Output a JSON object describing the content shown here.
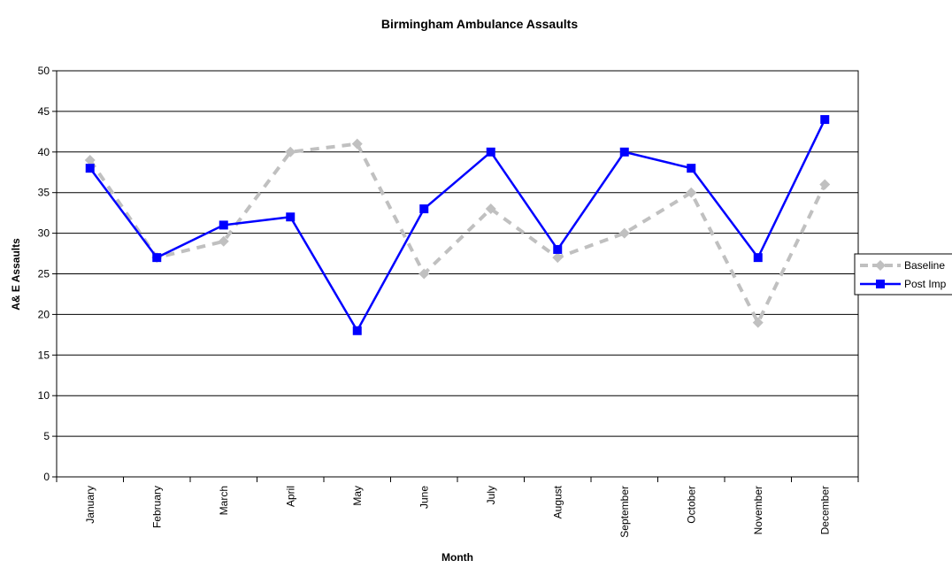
{
  "chart_data": {
    "type": "line",
    "title": "Birmingham Ambulance Assaults",
    "xlabel": "Month",
    "ylabel": "A& E Assaults",
    "categories": [
      "January",
      "February",
      "March",
      "April",
      "May",
      "June",
      "July",
      "August",
      "September",
      "October",
      "November",
      "December"
    ],
    "ylim": [
      0,
      50
    ],
    "yticks": [
      0,
      5,
      10,
      15,
      20,
      25,
      30,
      35,
      40,
      45,
      50
    ],
    "grid": true,
    "legend_position": "right",
    "series": [
      {
        "name": "Baseline",
        "legend_label": "Baseline",
        "color": "#c0c0c0",
        "line_style": "dashed",
        "marker": "diamond",
        "values": [
          39,
          27,
          29,
          40,
          41,
          25,
          33,
          27,
          30,
          35,
          19,
          36
        ]
      },
      {
        "name": "Post Imp",
        "legend_label": "Post Imp",
        "color": "#0000ff",
        "line_style": "solid",
        "marker": "square",
        "values": [
          38,
          27,
          31,
          32,
          18,
          33,
          40,
          28,
          40,
          38,
          27,
          44
        ]
      }
    ]
  }
}
